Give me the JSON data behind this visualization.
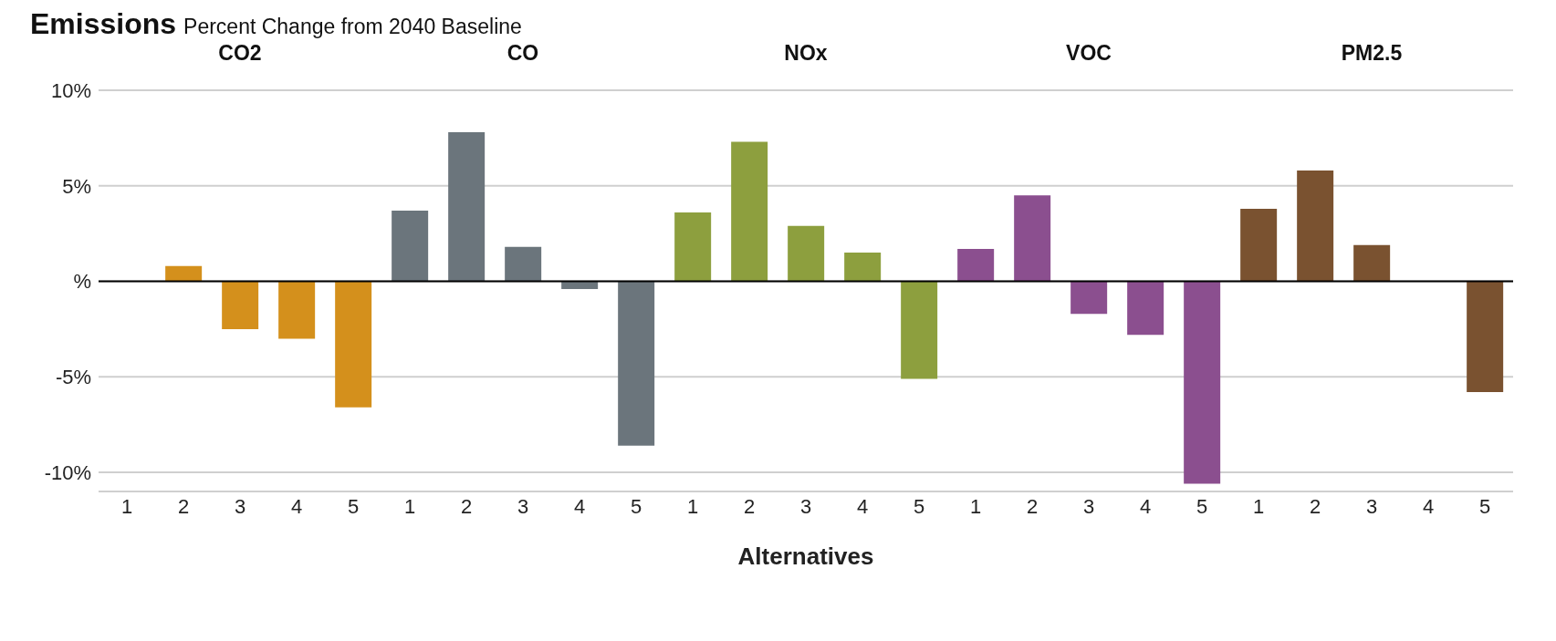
{
  "chart_data": [
    {
      "type": "bar",
      "title": "Emissions",
      "subtitle": "Percent Change from 2040 Baseline",
      "legend_title": "CO2",
      "categories": [
        "1",
        "2",
        "3",
        "4",
        "5"
      ],
      "values": [
        0,
        0.8,
        -2.5,
        -3.0,
        -6.6
      ],
      "color": "#d4901c",
      "ylim": [
        -11,
        10
      ],
      "yticks": [
        {
          "value": -10,
          "label": "-10%"
        },
        {
          "value": -5,
          "label": "-5%"
        },
        {
          "value": 0,
          "label": "%"
        },
        {
          "value": 5,
          "label": "5%"
        },
        {
          "value": 10,
          "label": "10%"
        }
      ],
      "grid": "y",
      "ref_lines": [
        {
          "axis": "y",
          "value": 0,
          "color": "#000000"
        }
      ]
    },
    {
      "type": "bar",
      "legend_title": "CO",
      "categories": [
        "1",
        "2",
        "3",
        "4",
        "5"
      ],
      "values": [
        3.7,
        7.8,
        1.8,
        -0.4,
        -8.6
      ],
      "color": "#6b757c",
      "ylim": [
        -11,
        10
      ],
      "yticks": [
        -10,
        -5,
        0,
        5,
        10
      ],
      "grid": "y",
      "tick_labels": "x",
      "ref_lines": [
        {
          "axis": "y",
          "value": 0,
          "color": "#000000"
        }
      ]
    },
    {
      "type": "bar",
      "legend_title": "NOx",
      "xlabel": "Alternatives",
      "categories": [
        "1",
        "2",
        "3",
        "4",
        "5"
      ],
      "values": [
        3.6,
        7.3,
        2.9,
        1.5,
        -5.1
      ],
      "color": "#8d9f3e",
      "ylim": [
        -11,
        10
      ],
      "yticks": [
        -10,
        -5,
        0,
        5,
        10
      ],
      "grid": "y",
      "tick_labels": "x",
      "ref_lines": [
        {
          "axis": "y",
          "value": 0,
          "color": "#000000"
        }
      ]
    },
    {
      "type": "bar",
      "legend_title": "VOC",
      "categories": [
        "1",
        "2",
        "3",
        "4",
        "5"
      ],
      "values": [
        1.7,
        4.5,
        -1.7,
        -2.8,
        -10.6
      ],
      "color": "#8b4f8f",
      "ylim": [
        -11,
        10
      ],
      "yticks": [
        -10,
        -5,
        0,
        5,
        10
      ],
      "grid": "y",
      "tick_labels": "x",
      "ref_lines": [
        {
          "axis": "y",
          "value": 0,
          "color": "#000000"
        }
      ]
    },
    {
      "type": "bar",
      "legend_title": "PM2.5",
      "categories": [
        "1",
        "2",
        "3",
        "4",
        "5"
      ],
      "values": [
        3.8,
        5.8,
        1.9,
        0,
        -5.8
      ],
      "color": "#7a5230",
      "ylim": [
        -11,
        10
      ],
      "yticks": [
        -10,
        -5,
        0,
        5,
        10
      ],
      "grid": "y",
      "tick_labels": "x",
      "ref_lines": [
        {
          "axis": "y",
          "value": 0,
          "color": "#000000"
        }
      ]
    }
  ]
}
